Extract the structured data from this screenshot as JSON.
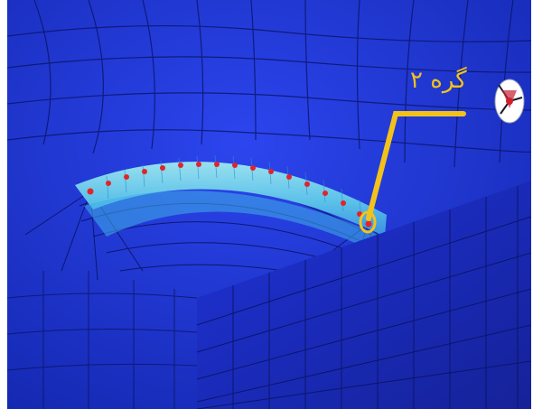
{
  "callout": {
    "label": "گره ۲"
  },
  "colors": {
    "mesh_background": "#1c2fd6",
    "mesh_lines": "#0a1466",
    "crack_band_outer": "#4bb6e6",
    "crack_band_inner": "#b4f0f0",
    "crack_front_nodes": "#e0242a",
    "callout": "#f2c21a"
  },
  "icons": [
    "crack-front-mesh",
    "node-marker-icon",
    "axis-triad-icon"
  ]
}
